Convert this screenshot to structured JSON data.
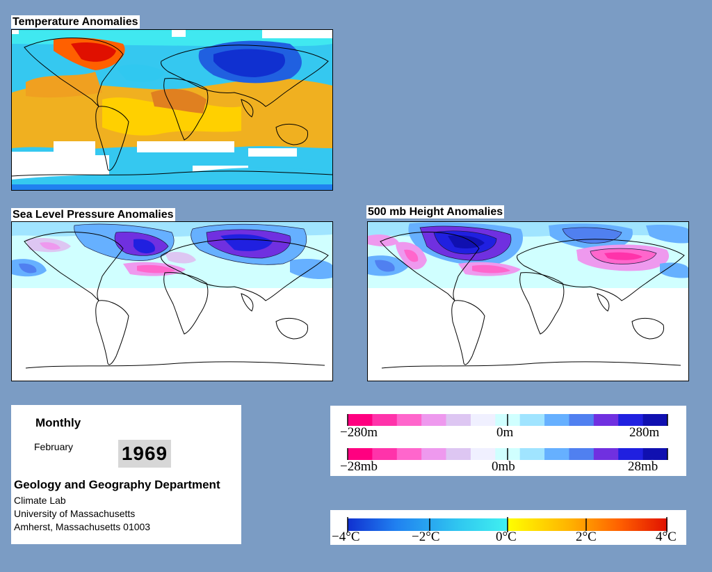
{
  "maps": {
    "temperature": {
      "title": "Temperature Anomalies"
    },
    "slp": {
      "title": "Sea Level Pressure Anomalies"
    },
    "height500": {
      "title": "500 mb Height Anomalies"
    }
  },
  "info": {
    "frequency": "Monthly",
    "month": "February",
    "year": "1969",
    "department": "Geology and Geography Department",
    "lines": [
      "Climate Lab",
      "University of Massachusetts",
      "Amherst, Massachusetts 01003"
    ]
  },
  "scales": {
    "height": {
      "labels": [
        "−280m",
        "0m",
        "280m"
      ]
    },
    "pressure": {
      "labels": [
        "−28mb",
        "0mb",
        "28mb"
      ]
    },
    "temperature": {
      "labels": [
        "−4°C",
        "−2°C",
        "0°C",
        "2°C",
        "4°C"
      ]
    }
  },
  "colors": {
    "background": "#7b9cc4",
    "anomaly_palette": [
      "#ff0080",
      "#ff33aa",
      "#ff66cc",
      "#ee99ee",
      "#ddc6f2",
      "#f0f0ff",
      "#d0ffff",
      "#a0e4ff",
      "#66b0ff",
      "#5080f0",
      "#7030e0",
      "#2020e0",
      "#1010b0"
    ],
    "temperature_gradient": [
      "#1030d0",
      "#2080f0",
      "#30c8f0",
      "#40f0f0",
      "#ffff00",
      "#ffb000",
      "#ff6000",
      "#e01000"
    ]
  }
}
